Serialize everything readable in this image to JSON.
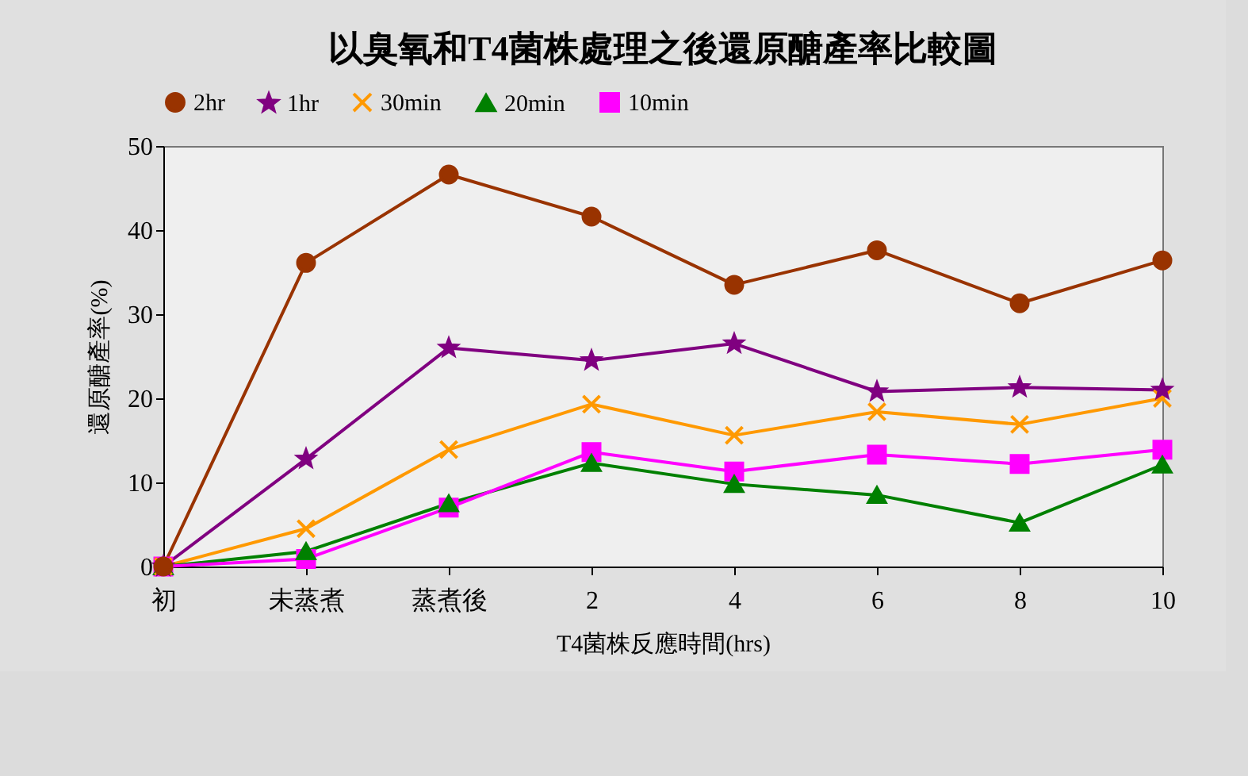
{
  "chart_data": {
    "type": "line",
    "title": "以臭氧和T4菌株處理之後還原醣產率比較圖",
    "xlabel": "T4菌株反應時間(hrs)",
    "ylabel": "還原醣產率(%)",
    "categories": [
      "初",
      "未蒸煮",
      "蒸煮後",
      "2",
      "4",
      "6",
      "8",
      "10"
    ],
    "ylim": [
      0,
      50
    ],
    "yticks": [
      0,
      10,
      20,
      30,
      40,
      50
    ],
    "grid": false,
    "legend": "top",
    "line_style": "solid",
    "series": [
      {
        "name": "2hr",
        "color": "#993300",
        "marker": "circle",
        "values": [
          0,
          36.1,
          46.6,
          41.6,
          33.5,
          37.6,
          31.3,
          36.4
        ]
      },
      {
        "name": "1hr",
        "color": "#800080",
        "marker": "star",
        "values": [
          0,
          12.8,
          26,
          24.5,
          26.5,
          20.8,
          21.3,
          21
        ]
      },
      {
        "name": "30min",
        "color": "#ff9900",
        "marker": "cross",
        "values": [
          0,
          4.5,
          13.9,
          19.3,
          15.6,
          18.4,
          16.9,
          20
        ]
      },
      {
        "name": "20min",
        "color": "#008000",
        "marker": "triangle",
        "values": [
          0,
          1.8,
          7.5,
          12.3,
          9.8,
          8.5,
          5.2,
          12.1
        ]
      },
      {
        "name": "10min",
        "color": "#ff00ff",
        "marker": "square",
        "values": [
          0,
          0.9,
          7,
          13.6,
          11.3,
          13.3,
          12.2,
          13.9
        ]
      }
    ]
  }
}
